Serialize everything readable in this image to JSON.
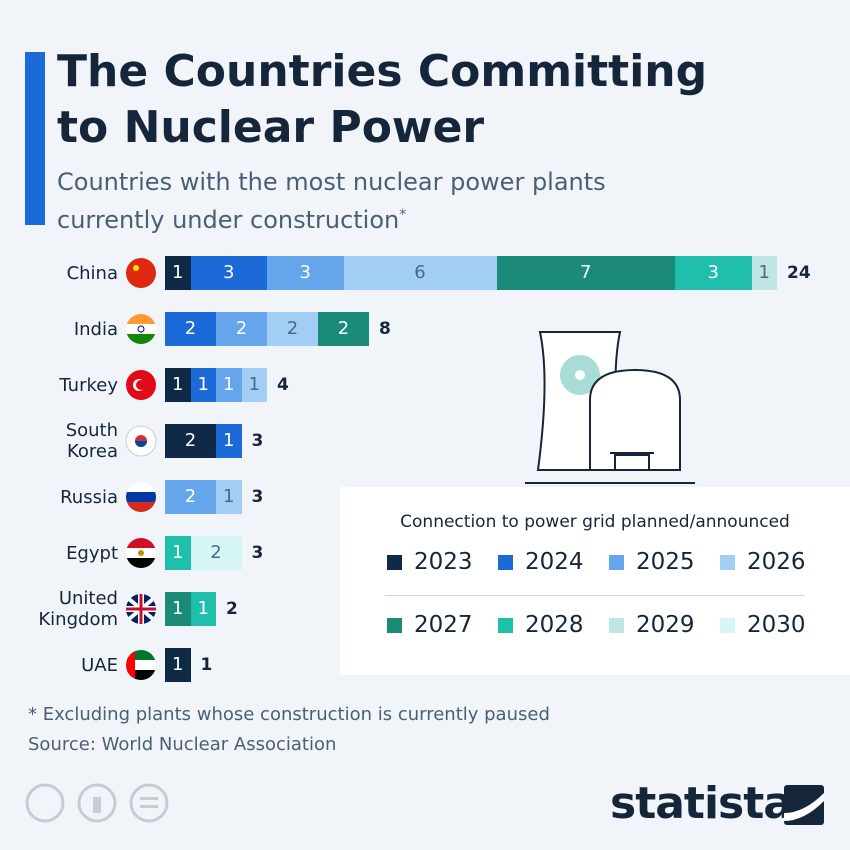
{
  "chart_data": {
    "type": "bar",
    "orientation": "horizontal",
    "stacked": true,
    "title": "The Countries Committing to Nuclear Power",
    "subtitle": "Countries with the most nuclear power plants currently under construction",
    "subtitle_mark": "*",
    "legend_title": "Connection to power grid planned/announced",
    "categories": [
      "China",
      "India",
      "Turkey",
      "South Korea",
      "Russia",
      "Egypt",
      "United Kingdom",
      "UAE"
    ],
    "totals": [
      24,
      8,
      4,
      3,
      3,
      3,
      2,
      1
    ],
    "series": [
      {
        "name": "2023",
        "color": "#0f2a47",
        "values": [
          1,
          null,
          1,
          2,
          null,
          null,
          null,
          1
        ]
      },
      {
        "name": "2024",
        "color": "#1c69d8",
        "values": [
          3,
          2,
          1,
          1,
          null,
          null,
          null,
          null
        ]
      },
      {
        "name": "2025",
        "color": "#64a5ec",
        "values": [
          3,
          2,
          1,
          null,
          2,
          null,
          null,
          null
        ]
      },
      {
        "name": "2026",
        "color": "#a2cdf5",
        "values": [
          6,
          2,
          1,
          null,
          1,
          null,
          null,
          null
        ]
      },
      {
        "name": "2027",
        "color": "#1b8a78",
        "values": [
          7,
          2,
          null,
          null,
          null,
          null,
          1,
          null
        ]
      },
      {
        "name": "2028",
        "color": "#1fbfac",
        "values": [
          3,
          null,
          null,
          null,
          null,
          1,
          1,
          null
        ]
      },
      {
        "name": "2029",
        "color": "#bfe6e2",
        "values": [
          1,
          null,
          null,
          null,
          null,
          null,
          null,
          null
        ]
      },
      {
        "name": "2030",
        "color": "#d6f6f3",
        "values": [
          null,
          null,
          null,
          null,
          null,
          2,
          null,
          null
        ]
      }
    ],
    "footnote": "* Excluding plants whose construction is currently paused",
    "source": "Source: World Nuclear Association",
    "brand": "statista"
  }
}
